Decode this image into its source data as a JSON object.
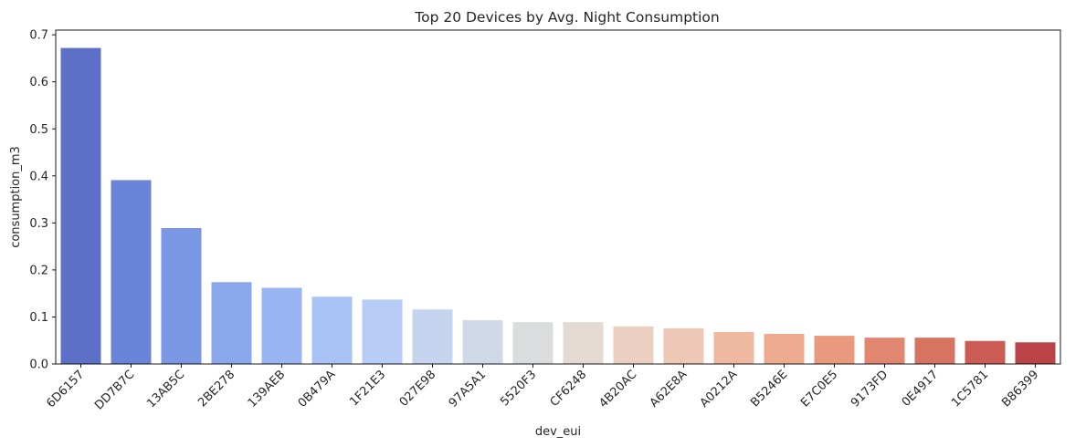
{
  "chart_data": {
    "type": "bar",
    "title": "Top 20 Devices by Avg. Night Consumption",
    "xlabel": "dev_eui",
    "ylabel": "consumption_m3",
    "ylim": [
      0,
      0.71
    ],
    "yticks": [
      0.0,
      0.1,
      0.2,
      0.3,
      0.4,
      0.5,
      0.6,
      0.7
    ],
    "ytick_labels": [
      "0.0",
      "0.1",
      "0.2",
      "0.3",
      "0.4",
      "0.5",
      "0.6",
      "0.7"
    ],
    "grid": false,
    "legend": "none",
    "palette": "coolwarm",
    "categories": [
      "6D6157",
      "DD7B7C",
      "13AB5C",
      "2BE278",
      "139AEB",
      "0B479A",
      "1F21E3",
      "027E98",
      "97A5A1",
      "5520F3",
      "CF6248",
      "4B20AC",
      "A62E8A",
      "A0212A",
      "B5246E",
      "E7C0E5",
      "9173FD",
      "0E4917",
      "1C5781",
      "B86399"
    ],
    "values": [
      0.672,
      0.391,
      0.289,
      0.174,
      0.162,
      0.143,
      0.137,
      0.116,
      0.093,
      0.089,
      0.089,
      0.08,
      0.076,
      0.068,
      0.064,
      0.06,
      0.056,
      0.056,
      0.049,
      0.046
    ],
    "colors": [
      "#5b70c6",
      "#6a84d8",
      "#7b96e2",
      "#8aa6ed",
      "#9ab4f2",
      "#a9c2f6",
      "#b7cdf7",
      "#c5d5f0",
      "#d0d9e8",
      "#dadcde",
      "#e3dad4",
      "#ebd0c2",
      "#eec8b6",
      "#efb8a0",
      "#ecab8f",
      "#e8997e",
      "#e18770",
      "#d77361",
      "#cb5c55",
      "#bb4347"
    ]
  }
}
